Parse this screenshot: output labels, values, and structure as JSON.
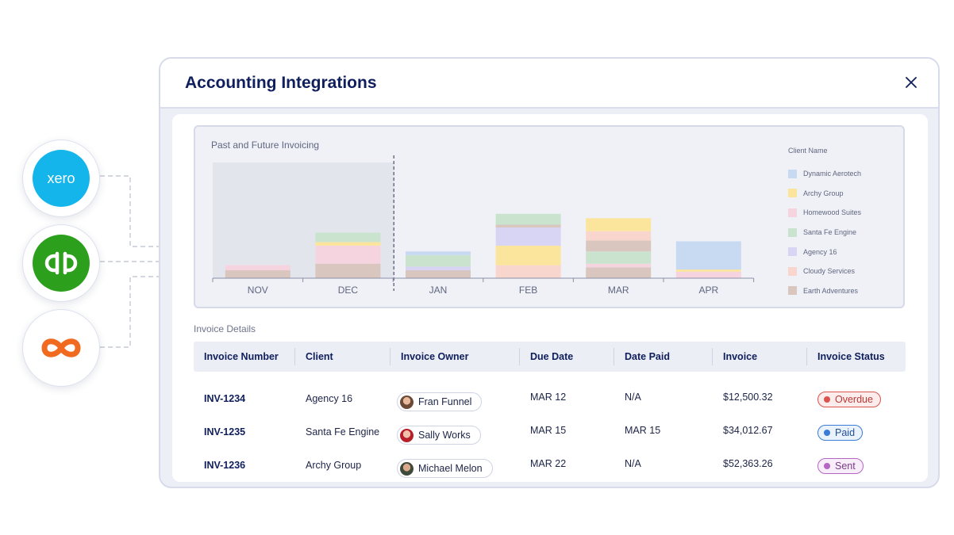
{
  "integrations": {
    "xero_label": "xero"
  },
  "modal": {
    "title": "Accounting Integrations"
  },
  "chart_data": {
    "type": "bar",
    "stacked": true,
    "title": "Past and Future Invoicing",
    "categories": [
      "NOV",
      "DEC",
      "JAN",
      "FEB",
      "MAR",
      "APR"
    ],
    "past_categories": [
      "NOV",
      "DEC"
    ],
    "legend_title": "Client Name",
    "legend_position": "right",
    "ylim": [
      0,
      160
    ],
    "series": [
      {
        "name": "Earth Adventures",
        "color": "#d9c6bf",
        "values": [
          11,
          20,
          11,
          0,
          15,
          0
        ]
      },
      {
        "name": "Cloudy Services",
        "color": "#f8d6cd",
        "values": [
          0,
          0,
          0,
          18,
          0,
          0
        ]
      },
      {
        "name": "Homewood Suites",
        "color": "#f6d4df",
        "values": [
          7,
          25,
          0,
          0,
          5,
          9
        ]
      },
      {
        "name": "Archy Group",
        "color": "#fbe59c",
        "values": [
          0,
          5,
          0,
          27,
          0,
          3
        ]
      },
      {
        "name": "Agency 16",
        "color": "#d7d4f4",
        "values": [
          0,
          0,
          5,
          25,
          0,
          0
        ]
      },
      {
        "name": "Santa Fe Engine",
        "color": "#c9e3cf",
        "values": [
          0,
          13,
          16,
          0,
          17,
          0
        ]
      },
      {
        "name": "Dynamic Aerotech",
        "color": "#c8d9f2",
        "values": [
          0,
          0,
          5,
          0,
          0,
          39
        ]
      },
      {
        "name": "Earth Adventures",
        "color": "#d9c6bf",
        "values": [
          0,
          0,
          0,
          4,
          15,
          0
        ]
      },
      {
        "name": "Santa Fe Engine",
        "color": "#c9e3cf",
        "values": [
          0,
          0,
          0,
          15,
          0,
          0
        ]
      },
      {
        "name": "Cloudy Services",
        "color": "#f8d6cd",
        "values": [
          0,
          0,
          0,
          0,
          13,
          0
        ]
      },
      {
        "name": "Archy Group",
        "color": "#fbe59c",
        "values": [
          0,
          0,
          0,
          0,
          18,
          0
        ]
      }
    ],
    "legend": [
      {
        "name": "Dynamic Aerotech",
        "color": "#c8d9f2"
      },
      {
        "name": "Archy Group",
        "color": "#fbe59c"
      },
      {
        "name": "Homewood Suites",
        "color": "#f6d4df"
      },
      {
        "name": "Santa Fe Engine",
        "color": "#c9e3cf"
      },
      {
        "name": "Agency 16",
        "color": "#d7d4f4"
      },
      {
        "name": "Cloudy Services",
        "color": "#f8d6cd"
      },
      {
        "name": "Earth Adventures",
        "color": "#d9c6bf"
      }
    ]
  },
  "invoice_details": {
    "title": "Invoice Details",
    "columns": [
      "Invoice Number",
      "Client",
      "Invoice Owner",
      "Due Date",
      "Date Paid",
      "Invoice",
      "Invoice Status"
    ],
    "rows": [
      {
        "number": "INV-1234",
        "client": "Agency 16",
        "owner": "Fran Funnel",
        "due": "MAR 12",
        "paid": "N/A",
        "amount": "$12,500.32",
        "status": "Overdue",
        "status_color": "#d9534f"
      },
      {
        "number": "INV-1235",
        "client": "Santa Fe Engine",
        "owner": "Sally Works",
        "due": "MAR 15",
        "paid": "MAR 15",
        "amount": "$34,012.67",
        "status": "Paid",
        "status_color": "#3a7bd5"
      },
      {
        "number": "INV-1236",
        "client": "Archy Group",
        "owner": "Michael Melon",
        "due": "MAR 22",
        "paid": "N/A",
        "amount": "$52,363.26",
        "status": "Sent",
        "status_color": "#b566c4"
      }
    ]
  }
}
